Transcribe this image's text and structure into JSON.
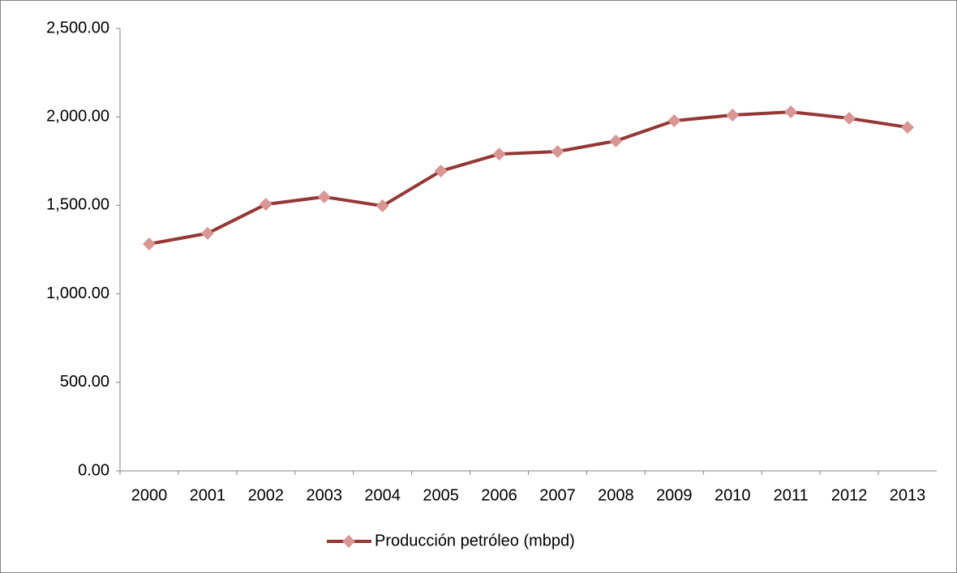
{
  "chart_data": {
    "type": "line",
    "categories": [
      "2000",
      "2001",
      "2002",
      "2003",
      "2004",
      "2005",
      "2006",
      "2007",
      "2008",
      "2009",
      "2010",
      "2011",
      "2012",
      "2013"
    ],
    "series": [
      {
        "name": "Producción petróleo (mbpd)",
        "color": "#953735",
        "marker_color": "#d99694",
        "values": [
          1282,
          1342,
          1506,
          1548,
          1497,
          1694,
          1790,
          1804,
          1864,
          1978,
          2010,
          2028,
          1992,
          1941
        ]
      }
    ],
    "ylim": [
      0,
      2500
    ],
    "yticks": [
      {
        "value": 0,
        "label": "0.00"
      },
      {
        "value": 500,
        "label": "500.00"
      },
      {
        "value": 1000,
        "label": "1,000.00"
      },
      {
        "value": 1500,
        "label": "1,500.00"
      },
      {
        "value": 2000,
        "label": "2,000.00"
      },
      {
        "value": 2500,
        "label": "2,500.00"
      }
    ],
    "grid": false,
    "legend": "bottom"
  }
}
